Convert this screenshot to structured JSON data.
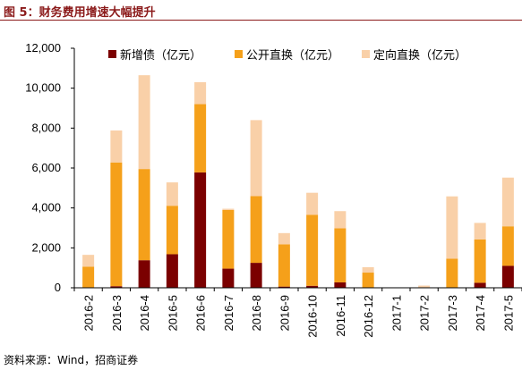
{
  "figure": {
    "title": "图 5：财务费用增速大幅提升",
    "source": "资料来源：Wind，招商证券"
  },
  "colors": {
    "title": "#8B1A1A",
    "series": [
      "#7B0000",
      "#F5A01A",
      "#F9D0A8"
    ]
  },
  "chart_data": {
    "type": "bar",
    "stacked": true,
    "categories": [
      "2016-2",
      "2016-3",
      "2016-4",
      "2016-5",
      "2016-6",
      "2016-7",
      "2016-8",
      "2016-9",
      "2016-10",
      "2016-11",
      "2016-12",
      "2017-1",
      "2017-2",
      "2017-3",
      "2017-4",
      "2017-5"
    ],
    "series": [
      {
        "name": "新增债（亿元）",
        "values": [
          0,
          80,
          1380,
          1680,
          5780,
          960,
          1250,
          60,
          100,
          270,
          0,
          0,
          0,
          0,
          250,
          1100
        ]
      },
      {
        "name": "公开直换（亿元）",
        "values": [
          1060,
          6200,
          4570,
          2430,
          3420,
          2940,
          3340,
          2120,
          3560,
          2710,
          760,
          0,
          0,
          1460,
          2170,
          1980
        ]
      },
      {
        "name": "定向直换（亿元）",
        "values": [
          590,
          1600,
          4700,
          1170,
          1100,
          60,
          3810,
          560,
          1100,
          860,
          270,
          0,
          110,
          3120,
          830,
          2440
        ]
      }
    ],
    "ylim": [
      0,
      12000
    ],
    "yticks": [
      "0",
      "2,000",
      "4,000",
      "6,000",
      "8,000",
      "10,000",
      "12,000"
    ],
    "legend_position": "top"
  }
}
